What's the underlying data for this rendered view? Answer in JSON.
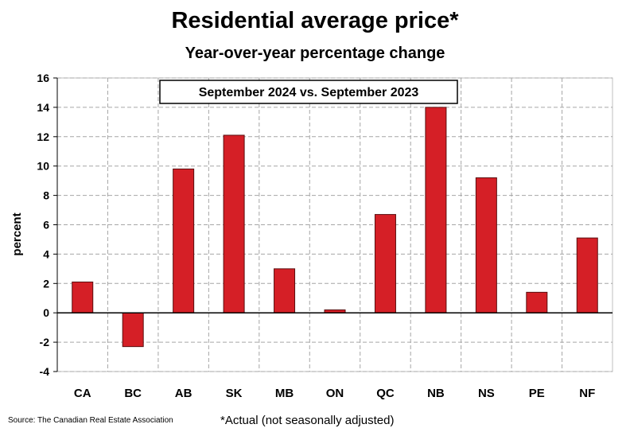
{
  "title": "Residential average price*",
  "subtitle": "Year-over-year percentage change",
  "source": "Source: The Canadian Real Estate Association",
  "footnote": "*Actual (not seasonally adjusted)",
  "colors": {
    "bar": "#d51f26",
    "bar_edge": "#5a0f10",
    "grid": "#a6a6a6"
  },
  "chart_data": {
    "type": "bar",
    "title": "Residential average price*",
    "subtitle": "Year-over-year percentage change",
    "annotation": "September 2024 vs. September 2023",
    "xlabel": "",
    "ylabel": "percent",
    "ylim": [
      -4,
      16
    ],
    "yticks": [
      -4,
      -2,
      0,
      2,
      4,
      6,
      8,
      10,
      12,
      14,
      16
    ],
    "grid": true,
    "categories": [
      "CA",
      "BC",
      "AB",
      "SK",
      "MB",
      "ON",
      "QC",
      "NB",
      "NS",
      "PE",
      "NF"
    ],
    "values": [
      2.1,
      -2.3,
      9.8,
      12.1,
      3.0,
      0.2,
      6.7,
      14.0,
      9.2,
      1.4,
      5.1
    ]
  }
}
